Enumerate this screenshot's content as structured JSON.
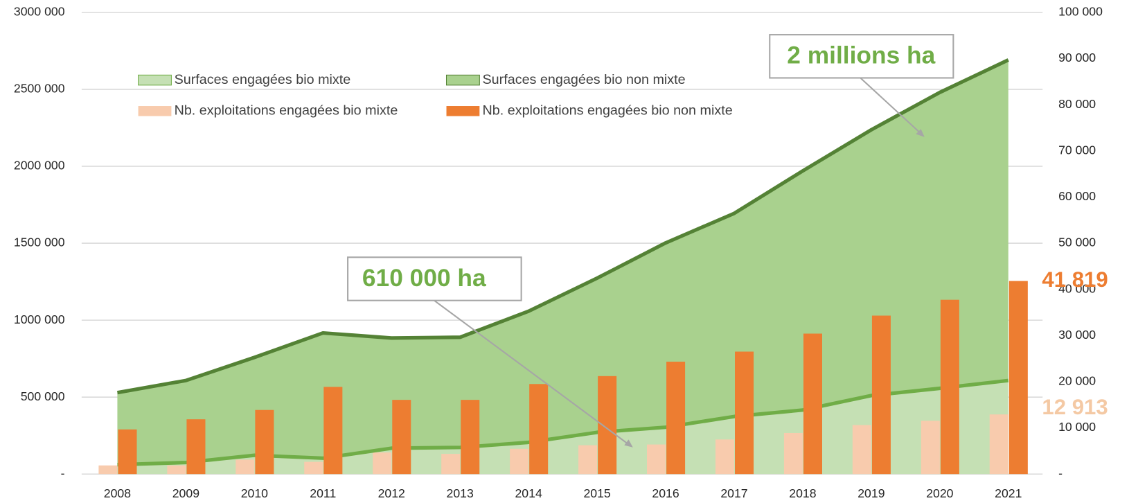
{
  "chart_data": {
    "type": "combo",
    "categories": [
      "2008",
      "2009",
      "2010",
      "2011",
      "2012",
      "2013",
      "2014",
      "2015",
      "2016",
      "2017",
      "2018",
      "2019",
      "2020",
      "2021"
    ],
    "series": [
      {
        "name": "Surfaces engagées bio mixte",
        "type": "area",
        "color": "#c5e0b4",
        "line_color": "#70ad47",
        "axis": "y",
        "values": [
          61000,
          75000,
          122000,
          103000,
          168000,
          173000,
          206000,
          271000,
          304000,
          374000,
          416000,
          510000,
          557000,
          608000
        ]
      },
      {
        "name": "Surfaces engagées bio non mixte",
        "type": "area",
        "color": "#a9d18e",
        "line_color": "#548235",
        "axis": "y",
        "values": [
          468000,
          533000,
          636000,
          814000,
          716000,
          716000,
          852000,
          1002000,
          1198000,
          1320000,
          1554000,
          1727000,
          1923000,
          2083000
        ]
      },
      {
        "name": "Nb. exploitations engagées bio mixte",
        "type": "bar",
        "color": "#f8cbad",
        "axis": "y2",
        "values": [
          1870,
          1870,
          3120,
          2650,
          4680,
          4370,
          5460,
          6240,
          6400,
          7490,
          8890,
          10610,
          11540,
          12913
        ],
        "value_labels": [
          null,
          null,
          null,
          null,
          null,
          null,
          null,
          null,
          null,
          null,
          null,
          null,
          null,
          "12 913"
        ],
        "label_color": "#f4c9a4"
      },
      {
        "name": "Nb. exploitations engagées bio non mixte",
        "type": "bar",
        "color": "#ed7d31",
        "axis": "y2",
        "values": [
          9670,
          11860,
          13880,
          18880,
          16070,
          16070,
          19500,
          21220,
          24340,
          26520,
          30420,
          34320,
          37750,
          41819
        ],
        "value_labels": [
          null,
          null,
          null,
          null,
          null,
          null,
          null,
          null,
          null,
          null,
          null,
          null,
          null,
          "41 819"
        ],
        "label_color": "#ed7d31"
      }
    ],
    "stacked": true,
    "ylim": [
      0,
      3000000
    ],
    "yticks": [
      {
        "value": 0,
        "label": "-"
      },
      {
        "value": 500000,
        "label": "500 000"
      },
      {
        "value": 1000000,
        "label": "1000 000"
      },
      {
        "value": 1500000,
        "label": "1500 000"
      },
      {
        "value": 2000000,
        "label": "2000 000"
      },
      {
        "value": 2500000,
        "label": "2500 000"
      },
      {
        "value": 3000000,
        "label": "3000 000"
      }
    ],
    "y2lim": [
      0,
      100000
    ],
    "y2ticks": [
      {
        "value": 0,
        "label": "-"
      },
      {
        "value": 10000,
        "label": "10 000"
      },
      {
        "value": 20000,
        "label": "20 000"
      },
      {
        "value": 30000,
        "label": "30 000"
      },
      {
        "value": 40000,
        "label": "40 000"
      },
      {
        "value": 50000,
        "label": "50 000"
      },
      {
        "value": 60000,
        "label": "60 000"
      },
      {
        "value": 70000,
        "label": "70 000"
      },
      {
        "value": 80000,
        "label": "80 000"
      },
      {
        "value": 90000,
        "label": "90 000"
      },
      {
        "value": 100000,
        "label": "100 000"
      }
    ],
    "grid": true,
    "annotations": [
      {
        "text": "2 millions ha",
        "color": "#70ad47"
      },
      {
        "text": "610 000 ha",
        "color": "#70ad47"
      }
    ]
  }
}
